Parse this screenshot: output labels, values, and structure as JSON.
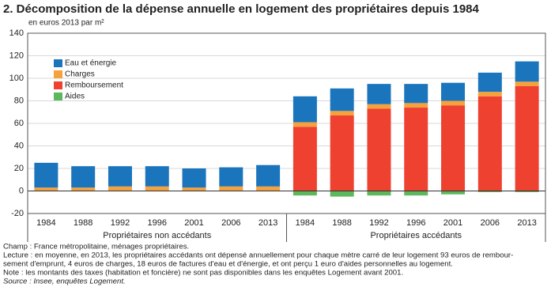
{
  "chart_data": {
    "type": "bar",
    "stacked": true,
    "title": "2. Décomposition de la dépense annuelle en logement des propriétaires depuis 1984",
    "y_label": "en euros 2013 par m²",
    "groups": [
      {
        "name": "Propriétaires non accédants",
        "categories": [
          "1984",
          "1988",
          "1992",
          "1996",
          "2001",
          "2006",
          "2013"
        ]
      },
      {
        "name": "Propriétaires accédants",
        "categories": [
          "1984",
          "1988",
          "1992",
          "1996",
          "2001",
          "2006",
          "2013"
        ]
      }
    ],
    "series": [
      {
        "name": "Eau et énergie",
        "color": "#1b75bc",
        "values": [
          22,
          19,
          18,
          18,
          17,
          17,
          19,
          23,
          20,
          18,
          17,
          16,
          17,
          18
        ]
      },
      {
        "name": "Charges",
        "color": "#f6a13c",
        "values": [
          3,
          3,
          4,
          4,
          3,
          4,
          4,
          4,
          4,
          4,
          4,
          4,
          4,
          4
        ]
      },
      {
        "name": "Remboursement",
        "color": "#ee4130",
        "values": [
          null,
          null,
          null,
          null,
          null,
          null,
          null,
          57,
          67,
          73,
          74,
          76,
          84,
          93
        ]
      },
      {
        "name": "Aides",
        "color": "#5cb85c",
        "values": [
          null,
          null,
          null,
          null,
          null,
          null,
          null,
          -4,
          -5,
          -4,
          -4,
          -3,
          -1,
          -1
        ]
      }
    ],
    "ylim": [
      -20,
      140
    ],
    "yticks": [
      -20,
      0,
      20,
      40,
      60,
      80,
      100,
      120,
      140
    ],
    "grid": true,
    "legend": "upper left",
    "notes": [
      "Champ : France métropolitaine, ménages propriétaires.",
      "Lecture : en moyenne, en 2013, les propriétaires accédants ont dépensé annuellement pour chaque mètre carré de leur logement 93 euros de rembour-",
      "sement d'emprunt, 4 euros de charges, 18 euros de factures d'eau et d'énergie, et ont perçu 1 euro d'aides personnelles au logement.",
      "Note : les montants des taxes (habitation et foncière) ne sont pas disponibles dans les enquêtes Logement avant 2001."
    ],
    "source": "Source : Insee, enquêtes Logement."
  }
}
